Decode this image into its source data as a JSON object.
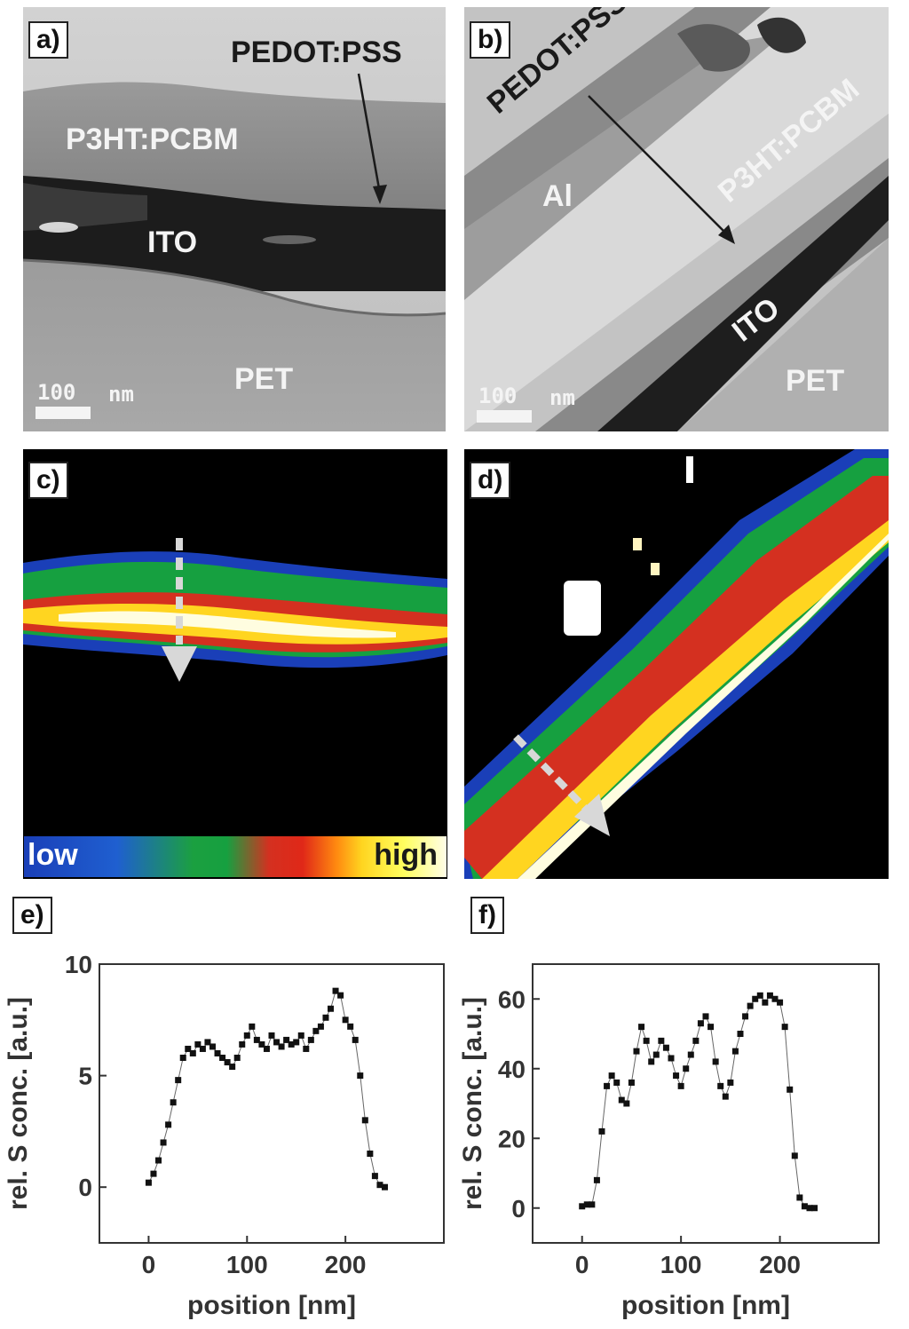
{
  "panels": {
    "a": {
      "label": "a)",
      "layers": {
        "pedot": "PEDOT:PSS",
        "active": "P3HT:PCBM",
        "ito": "ITO",
        "substrate": "PET"
      },
      "scale_value": "100",
      "scale_unit": "nm"
    },
    "b": {
      "label": "b)",
      "layers": {
        "pedot": "PEDOT:PSS",
        "active": "P3HT:PCBM",
        "cathode": "Al",
        "ito": "ITO",
        "substrate": "PET"
      },
      "scale_value": "100",
      "scale_unit": "nm"
    },
    "c": {
      "label": "c)",
      "colorbar": {
        "low": "low",
        "high": "high"
      }
    },
    "d": {
      "label": "d)"
    },
    "e": {
      "label": "e)"
    },
    "f": {
      "label": "f)"
    }
  },
  "colors": {
    "plot_marker": "#111111",
    "colorbar_low": "#1a3fb8",
    "colorbar_mid": "#16a040",
    "colorbar_red": "#d43020",
    "colorbar_high": "#ffff60"
  },
  "chart_data": [
    {
      "panel": "e",
      "type": "scatter",
      "xlabel": "position [nm]",
      "ylabel": "rel. S conc. [a.u.]",
      "xlim": [
        -50,
        300
      ],
      "ylim": [
        -2.5,
        10
      ],
      "xticks": [
        0,
        100,
        200
      ],
      "yticks": [
        0,
        5,
        10
      ],
      "x": [
        0,
        5,
        10,
        15,
        20,
        25,
        30,
        35,
        40,
        45,
        50,
        55,
        60,
        65,
        70,
        75,
        80,
        85,
        90,
        95,
        100,
        105,
        110,
        115,
        120,
        125,
        130,
        135,
        140,
        145,
        150,
        155,
        160,
        165,
        170,
        175,
        180,
        185,
        190,
        195,
        200,
        205,
        210,
        215,
        220,
        225,
        230,
        235,
        240
      ],
      "y": [
        0.2,
        0.6,
        1.2,
        2.0,
        2.8,
        3.8,
        4.8,
        5.8,
        6.2,
        6.0,
        6.4,
        6.2,
        6.5,
        6.3,
        6.0,
        5.8,
        5.6,
        5.4,
        5.8,
        6.4,
        6.8,
        7.2,
        6.6,
        6.4,
        6.2,
        6.8,
        6.5,
        6.3,
        6.6,
        6.4,
        6.5,
        6.8,
        6.2,
        6.6,
        7.0,
        7.2,
        7.6,
        8.0,
        8.8,
        8.6,
        7.5,
        7.2,
        6.6,
        5.0,
        3.0,
        1.5,
        0.5,
        0.1,
        0.0
      ]
    },
    {
      "panel": "f",
      "type": "scatter",
      "xlabel": "position [nm]",
      "ylabel": "rel. S conc. [a.u.]",
      "xlim": [
        -50,
        300
      ],
      "ylim": [
        -10,
        70
      ],
      "xticks": [
        0,
        100,
        200
      ],
      "yticks": [
        0,
        20,
        40,
        60
      ],
      "x": [
        0,
        5,
        10,
        15,
        20,
        25,
        30,
        35,
        40,
        45,
        50,
        55,
        60,
        65,
        70,
        75,
        80,
        85,
        90,
        95,
        100,
        105,
        110,
        115,
        120,
        125,
        130,
        135,
        140,
        145,
        150,
        155,
        160,
        165,
        170,
        175,
        180,
        185,
        190,
        195,
        200,
        205,
        210,
        215,
        220,
        225,
        230,
        235
      ],
      "y": [
        0.5,
        1,
        1,
        8,
        22,
        35,
        38,
        36,
        31,
        30,
        36,
        45,
        52,
        48,
        42,
        44,
        48,
        46,
        43,
        38,
        35,
        40,
        44,
        48,
        53,
        55,
        52,
        42,
        35,
        32,
        36,
        45,
        50,
        55,
        58,
        60,
        61,
        59,
        61,
        60,
        59,
        52,
        34,
        15,
        3,
        0.5,
        0,
        0
      ]
    }
  ]
}
